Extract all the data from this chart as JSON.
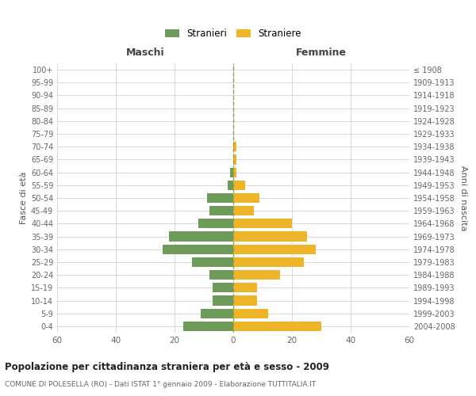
{
  "age_groups": [
    "0-4",
    "5-9",
    "10-14",
    "15-19",
    "20-24",
    "25-29",
    "30-34",
    "35-39",
    "40-44",
    "45-49",
    "50-54",
    "55-59",
    "60-64",
    "65-69",
    "70-74",
    "75-79",
    "80-84",
    "85-89",
    "90-94",
    "95-99",
    "100+"
  ],
  "birth_years": [
    "2004-2008",
    "1999-2003",
    "1994-1998",
    "1989-1993",
    "1984-1988",
    "1979-1983",
    "1974-1978",
    "1969-1973",
    "1964-1968",
    "1959-1963",
    "1954-1958",
    "1949-1953",
    "1944-1948",
    "1939-1943",
    "1934-1938",
    "1929-1933",
    "1924-1928",
    "1919-1923",
    "1914-1918",
    "1909-1913",
    "≤ 1908"
  ],
  "maschi": [
    17,
    11,
    7,
    7,
    8,
    14,
    24,
    22,
    12,
    8,
    9,
    2,
    1,
    0,
    0,
    0,
    0,
    0,
    0,
    0,
    0
  ],
  "femmine": [
    30,
    12,
    8,
    8,
    16,
    24,
    28,
    25,
    20,
    7,
    9,
    4,
    1,
    1,
    1,
    0,
    0,
    0,
    0,
    0,
    0
  ],
  "color_maschi": "#6d9b5a",
  "color_femmine": "#f0b429",
  "title": "Popolazione per cittadinanza straniera per età e sesso - 2009",
  "subtitle": "COMUNE DI POLESELLA (RO) - Dati ISTAT 1° gennaio 2009 - Elaborazione TUTTITALIA.IT",
  "header_maschi": "Maschi",
  "header_femmine": "Femmine",
  "ylabel_left": "Fasce di età",
  "ylabel_right": "Anni di nascita",
  "legend_maschi": "Stranieri",
  "legend_femmine": "Straniere",
  "xlim": 60,
  "bg_color": "#ffffff",
  "grid_color": "#cccccc",
  "dashed_line_color": "#9b9b4a"
}
